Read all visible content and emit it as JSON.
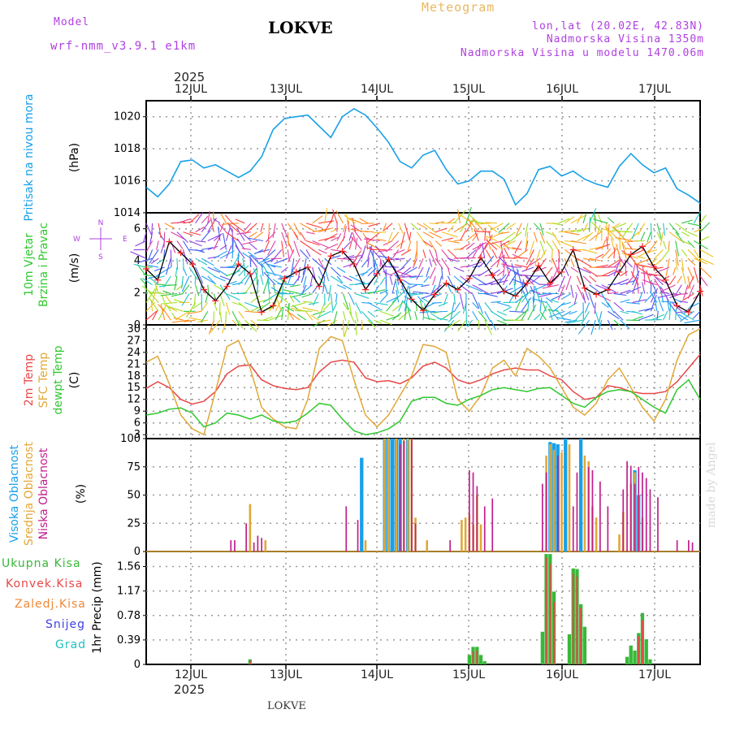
{
  "header": {
    "model_label": "Model",
    "model_name": "wrf-nmm_v3.9.1 e1km",
    "station": "LOKVE",
    "app_title": "Meteogram",
    "coords": "lon,lat (20.02E, 42.83N)",
    "elevation": "Nadmorska Visina 1350m",
    "model_elevation": "Nadmorska Visina u modelu 1470.06m",
    "watermark": "made by Angel",
    "footer_station": "LOKVE"
  },
  "time_axis": {
    "year": "2025",
    "days": [
      "12JUL",
      "13JUL",
      "14JUL",
      "15JUL",
      "16JUL",
      "17JUL"
    ]
  },
  "colors": {
    "pressure": "#18a0e8",
    "temp2m": "#e84848",
    "sfc_temp": "#e0a838",
    "dewpoint": "#30c830",
    "high_cloud": "#18a0e8",
    "mid_cloud": "#e0a838",
    "low_cloud": "#c0208c",
    "total_precip": "#38b838",
    "conv_precip": "#e84848",
    "freezing_rain": "#f08838",
    "snow": "#4040e0",
    "hail": "#20c0c0",
    "wind_speed_line": "#000000",
    "wind_marker": "#ff2020"
  },
  "chart_data": [
    {
      "type": "line",
      "panel": "pressure",
      "ylabel_lines": [
        "Pritisak na nivou mora",
        "(hPa)"
      ],
      "ylim": [
        1014,
        1021
      ],
      "yticks": [
        "1014",
        "1016",
        "1018",
        "1020"
      ],
      "grid": true,
      "x_hours": [
        0,
        3,
        6,
        9,
        12,
        15,
        18,
        21,
        24,
        27,
        30,
        33,
        36,
        39,
        42,
        45,
        48,
        51,
        54,
        57,
        60,
        63,
        66,
        69,
        72,
        75,
        78,
        81,
        84,
        87,
        90,
        93,
        96,
        99,
        102,
        105,
        108,
        111,
        114,
        117,
        120,
        123,
        126,
        129,
        132,
        135,
        138,
        141,
        144
      ],
      "series": [
        {
          "values": [
            1015.6,
            1015.0,
            1015.8,
            1017.2,
            1017.3,
            1016.8,
            1017.0,
            1016.6,
            1016.2,
            1016.6,
            1017.5,
            1019.2,
            1019.9,
            1020.0,
            1020.1,
            1019.4,
            1018.7,
            1020.0,
            1020.5,
            1020.1,
            1019.3,
            1018.4,
            1017.2,
            1016.8,
            1017.6,
            1017.9,
            1016.7,
            1015.8,
            1016.0,
            1016.6,
            1016.6,
            1016.1,
            1014.5,
            1015.2,
            1016.7,
            1016.9,
            1016.3,
            1016.6,
            1016.1,
            1015.8,
            1015.6,
            1016.9,
            1017.7,
            1017.0,
            1016.5,
            1016.8,
            1015.5,
            1015.1,
            1014.6
          ]
        }
      ]
    },
    {
      "type": "line",
      "panel": "wind",
      "ylabel_lines": [
        "10m Vjetar",
        "Brzina i Pravac",
        "(m/s)"
      ],
      "compass": [
        "N",
        "S",
        "W",
        "E"
      ],
      "ylim": [
        0,
        7
      ],
      "yticks": [
        "0",
        "2",
        "4",
        "6"
      ],
      "grid": true,
      "x_hours": [
        0,
        3,
        6,
        9,
        12,
        15,
        18,
        21,
        24,
        27,
        30,
        33,
        36,
        39,
        42,
        45,
        48,
        51,
        54,
        57,
        60,
        63,
        66,
        69,
        72,
        75,
        78,
        81,
        84,
        87,
        90,
        93,
        96,
        99,
        102,
        105,
        108,
        111,
        114,
        117,
        120,
        123,
        126,
        129,
        132,
        135,
        138,
        141,
        144
      ],
      "series": [
        {
          "name": "wind speed",
          "values": [
            3.5,
            2.8,
            5.2,
            4.5,
            3.8,
            2.2,
            1.5,
            2.4,
            3.8,
            3.2,
            0.8,
            1.2,
            2.9,
            3.3,
            3.6,
            2.4,
            4.3,
            4.6,
            3.8,
            2.2,
            3.2,
            4.1,
            2.8,
            1.6,
            0.9,
            1.9,
            2.6,
            2.2,
            2.9,
            4.2,
            3.1,
            2.1,
            1.8,
            2.6,
            3.7,
            2.6,
            3.3,
            4.7,
            2.3,
            1.9,
            2.2,
            3.3,
            4.4,
            4.9,
            3.6,
            2.8,
            1.2,
            0.8,
            2.1
          ]
        }
      ]
    },
    {
      "type": "line",
      "panel": "temperature",
      "ylabel_lines": [
        "2m Temp",
        "SFC Temp",
        "dewpt Temp",
        "(C)"
      ],
      "ylim": [
        2,
        31
      ],
      "yticks": [
        "3",
        "6",
        "9",
        "12",
        "15",
        "18",
        "21",
        "24",
        "27",
        "30"
      ],
      "grid": true,
      "x_hours": [
        0,
        3,
        6,
        9,
        12,
        15,
        18,
        21,
        24,
        27,
        30,
        33,
        36,
        39,
        42,
        45,
        48,
        51,
        54,
        57,
        60,
        63,
        66,
        69,
        72,
        75,
        78,
        81,
        84,
        87,
        90,
        93,
        96,
        99,
        102,
        105,
        108,
        111,
        114,
        117,
        120,
        123,
        126,
        129,
        132,
        135,
        138,
        141,
        144
      ],
      "series": [
        {
          "name": "2m Temp",
          "values": [
            14.8,
            16.5,
            15.0,
            12.0,
            10.8,
            11.5,
            14.0,
            18.5,
            20.5,
            20.8,
            17.0,
            15.5,
            14.8,
            14.5,
            15.0,
            19.0,
            21.5,
            22.0,
            21.5,
            17.5,
            16.5,
            16.8,
            16.0,
            17.5,
            20.5,
            21.5,
            20.0,
            17.0,
            16.0,
            17.0,
            18.5,
            19.5,
            20.0,
            19.5,
            19.5,
            18.0,
            17.0,
            14.0,
            12.0,
            12.5,
            15.5,
            15.0,
            14.0,
            13.5,
            13.5,
            14.0,
            16.5,
            20.0,
            23.5
          ]
        },
        {
          "name": "SFC Temp",
          "values": [
            21.5,
            23.0,
            16.0,
            8.0,
            4.5,
            3.0,
            14.0,
            25.5,
            27.0,
            20.0,
            10.0,
            7.0,
            5.0,
            4.5,
            12.0,
            25.0,
            28.0,
            27.0,
            17.0,
            8.0,
            5.0,
            8.0,
            13.0,
            18.0,
            26.0,
            25.5,
            24.0,
            12.0,
            9.0,
            13.0,
            20.0,
            22.0,
            18.0,
            25.0,
            23.0,
            20.0,
            15.0,
            10.0,
            8.0,
            11.0,
            17.0,
            20.0,
            15.0,
            10.0,
            6.5,
            12.0,
            22.0,
            28.5,
            30.0
          ]
        },
        {
          "name": "dewpt Temp",
          "values": [
            8.0,
            8.5,
            9.5,
            9.8,
            8.5,
            5.0,
            6.0,
            8.5,
            8.0,
            7.0,
            8.0,
            6.5,
            6.0,
            6.5,
            8.5,
            11.0,
            10.5,
            7.0,
            4.0,
            3.0,
            3.5,
            4.5,
            6.5,
            11.5,
            12.5,
            12.5,
            11.0,
            10.5,
            12.0,
            13.0,
            14.5,
            15.0,
            14.5,
            14.0,
            14.8,
            15.0,
            13.0,
            11.0,
            10.0,
            12.5,
            14.0,
            14.5,
            14.0,
            12.0,
            10.0,
            8.5,
            14.5,
            17.0,
            12.0
          ]
        }
      ]
    },
    {
      "type": "bar",
      "panel": "clouds",
      "ylabel_lines": [
        "Visoka Oblacnost",
        "Srednja Oblacnost",
        "Niska Oblacnost",
        "(%)"
      ],
      "ylim": [
        0,
        100
      ],
      "yticks": [
        "0",
        "25",
        "50",
        "75",
        "100"
      ],
      "grid": true,
      "series": [
        {
          "name": "Visoka Oblacnost",
          "points": [
            [
              56,
              83
            ],
            [
              62,
              100
            ],
            [
              63,
              100
            ],
            [
              64,
              100
            ],
            [
              65,
              100
            ],
            [
              66,
              100
            ],
            [
              68,
              100
            ],
            [
              105,
              97
            ],
            [
              106,
              96
            ],
            [
              107,
              95
            ],
            [
              109,
              100
            ],
            [
              113,
              100
            ],
            [
              127,
              72
            ],
            [
              128,
              50
            ]
          ]
        },
        {
          "name": "Srednja Oblacnost",
          "points": [
            [
              27,
              42
            ],
            [
              31,
              10
            ],
            [
              57,
              10
            ],
            [
              62,
              100
            ],
            [
              63,
              100
            ],
            [
              65,
              100
            ],
            [
              67,
              100
            ],
            [
              68,
              100
            ],
            [
              69,
              100
            ],
            [
              70,
              30
            ],
            [
              73,
              10
            ],
            [
              82,
              28
            ],
            [
              83,
              30
            ],
            [
              84,
              33
            ],
            [
              85,
              24
            ],
            [
              86,
              50
            ],
            [
              87,
              24
            ],
            [
              104,
              85
            ],
            [
              105,
              95
            ],
            [
              106,
              90
            ],
            [
              108,
              88
            ],
            [
              110,
              95
            ],
            [
              114,
              85
            ],
            [
              115,
              80
            ],
            [
              116,
              40
            ],
            [
              117,
              30
            ],
            [
              123,
              15
            ],
            [
              124,
              35
            ],
            [
              126,
              60
            ],
            [
              127,
              70
            ],
            [
              128,
              50
            ],
            [
              129,
              30
            ]
          ]
        },
        {
          "name": "Niska Oblacnost",
          "points": [
            [
              22,
              10
            ],
            [
              23,
              10
            ],
            [
              26,
              25
            ],
            [
              28,
              8
            ],
            [
              29,
              14
            ],
            [
              30,
              12
            ],
            [
              52,
              40
            ],
            [
              55,
              28
            ],
            [
              66,
              95
            ],
            [
              67,
              98
            ],
            [
              69,
              100
            ],
            [
              70,
              25
            ],
            [
              79,
              10
            ],
            [
              84,
              72
            ],
            [
              85,
              70
            ],
            [
              86,
              58
            ],
            [
              88,
              40
            ],
            [
              90,
              47
            ],
            [
              103,
              60
            ],
            [
              104,
              70
            ],
            [
              107,
              85
            ],
            [
              111,
              40
            ],
            [
              112,
              70
            ],
            [
              115,
              75
            ],
            [
              116,
              72
            ],
            [
              118,
              62
            ],
            [
              120,
              40
            ],
            [
              124,
              55
            ],
            [
              125,
              80
            ],
            [
              126,
              76
            ],
            [
              127,
              60
            ],
            [
              128,
              75
            ],
            [
              129,
              70
            ],
            [
              130,
              65
            ],
            [
              131,
              55
            ],
            [
              133,
              48
            ],
            [
              138,
              10
            ],
            [
              141,
              10
            ],
            [
              142,
              8
            ]
          ]
        }
      ]
    },
    {
      "type": "bar",
      "panel": "precipitation",
      "ylabel_lines": [
        "1hr Precip (mm)"
      ],
      "legend": [
        "Ukupna Kisa",
        "Konvek.Kisa",
        "Zaledj.Kisa",
        "Snijeg",
        "Grad"
      ],
      "ylim": [
        0,
        1.8
      ],
      "yticks": [
        "0",
        "0.39",
        "0.78",
        "1.17",
        "1.56"
      ],
      "grid": true,
      "series": [
        {
          "name": "Ukupna Kisa",
          "points": [
            [
              27,
              0.08
            ],
            [
              84,
              0.15
            ],
            [
              85,
              0.28
            ],
            [
              86,
              0.28
            ],
            [
              87,
              0.15
            ],
            [
              88,
              0.05
            ],
            [
              103,
              0.52
            ],
            [
              104,
              1.76
            ],
            [
              105,
              1.76
            ],
            [
              106,
              1.16
            ],
            [
              110,
              0.48
            ],
            [
              111,
              1.53
            ],
            [
              112,
              1.52
            ],
            [
              113,
              0.96
            ],
            [
              114,
              0.6
            ],
            [
              125,
              0.12
            ],
            [
              126,
              0.3
            ],
            [
              127,
              0.22
            ],
            [
              128,
              0.5
            ],
            [
              129,
              0.82
            ],
            [
              130,
              0.4
            ],
            [
              131,
              0.08
            ]
          ]
        },
        {
          "name": "Konvek.Kisa",
          "points": [
            [
              27,
              0.06
            ],
            [
              85,
              0.2
            ],
            [
              86,
              0.22
            ],
            [
              104,
              1.7
            ],
            [
              105,
              1.6
            ],
            [
              106,
              1.0
            ],
            [
              111,
              1.45
            ],
            [
              112,
              1.4
            ],
            [
              113,
              0.9
            ],
            [
              128,
              0.45
            ],
            [
              129,
              0.7
            ]
          ]
        }
      ]
    }
  ]
}
